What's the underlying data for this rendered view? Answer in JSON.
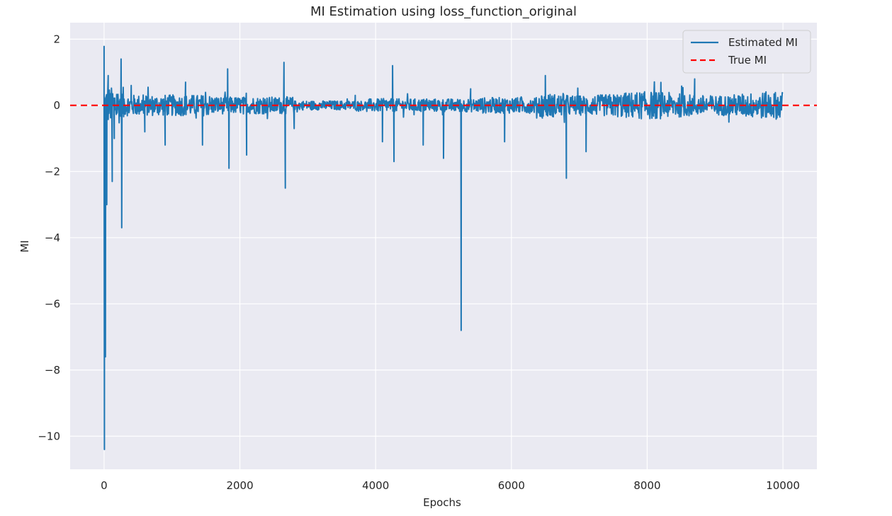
{
  "chart_data": {
    "type": "line",
    "title": "MI Estimation using loss_function_original",
    "xlabel": "Epochs",
    "ylabel": "MI",
    "xlim": [
      -500,
      10500
    ],
    "ylim": [
      -11,
      2.5
    ],
    "xticks": [
      0,
      2000,
      4000,
      6000,
      8000,
      10000
    ],
    "xtick_labels": [
      "0",
      "2000",
      "4000",
      "6000",
      "8000",
      "10000"
    ],
    "yticks": [
      2,
      0,
      -2,
      -4,
      -6,
      -8,
      -10
    ],
    "ytick_labels": [
      "2",
      "0",
      "−2",
      "−4",
      "−6",
      "−8",
      "−10"
    ],
    "grid": true,
    "legend_position": "top-right",
    "series": [
      {
        "name": "Estimated MI",
        "style": "solid",
        "color": "#1f77b4",
        "x_range": [
          0,
          10000
        ],
        "spikes": [
          {
            "x": 0,
            "y": 1.8
          },
          {
            "x": 5,
            "y": -10.4
          },
          {
            "x": 20,
            "y": -7.6
          },
          {
            "x": 40,
            "y": -3.0
          },
          {
            "x": 60,
            "y": 0.9
          },
          {
            "x": 120,
            "y": -2.3
          },
          {
            "x": 150,
            "y": -1.0
          },
          {
            "x": 250,
            "y": 1.4
          },
          {
            "x": 260,
            "y": -3.7
          },
          {
            "x": 400,
            "y": 0.6
          },
          {
            "x": 600,
            "y": -0.8
          },
          {
            "x": 900,
            "y": -1.2
          },
          {
            "x": 1200,
            "y": 0.7
          },
          {
            "x": 1450,
            "y": -1.2
          },
          {
            "x": 1820,
            "y": 1.1
          },
          {
            "x": 1840,
            "y": -1.9
          },
          {
            "x": 2100,
            "y": -1.5
          },
          {
            "x": 2650,
            "y": 1.3
          },
          {
            "x": 2670,
            "y": -2.5
          },
          {
            "x": 2800,
            "y": -0.7
          },
          {
            "x": 3700,
            "y": 0.3
          },
          {
            "x": 4100,
            "y": -1.1
          },
          {
            "x": 4250,
            "y": 1.2
          },
          {
            "x": 4270,
            "y": -1.7
          },
          {
            "x": 4700,
            "y": -1.2
          },
          {
            "x": 5000,
            "y": -1.6
          },
          {
            "x": 5260,
            "y": -6.8
          },
          {
            "x": 5400,
            "y": 0.5
          },
          {
            "x": 5900,
            "y": -1.1
          },
          {
            "x": 6500,
            "y": 0.9
          },
          {
            "x": 6810,
            "y": -2.2
          },
          {
            "x": 7100,
            "y": -1.4
          },
          {
            "x": 8700,
            "y": 0.8
          }
        ]
      },
      {
        "name": "True MI",
        "style": "dashed",
        "color": "#ff0000",
        "y": 0
      }
    ]
  }
}
